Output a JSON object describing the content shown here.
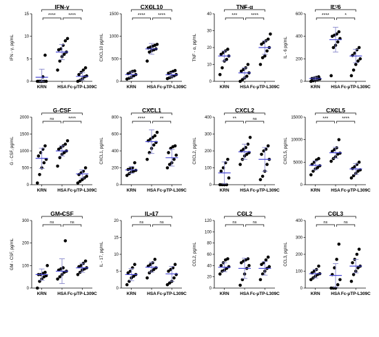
{
  "chart_data": [
    {
      "type": "scatter",
      "title": "IFN-γ",
      "ylabel": "IFN - γ, pg/mL",
      "ylim": [
        0,
        15
      ],
      "yticks": [
        "0",
        "5",
        "10",
        "15"
      ],
      "categories": [
        "KRN",
        "HSA",
        "Fc-μTP-L309C"
      ],
      "series": [
        {
          "values": [
            [
              0,
              0,
              0,
              0,
              0,
              0,
              0,
              1,
              5.8
            ],
            [
              2.5,
              4.5,
              5.5,
              6,
              6.5,
              7,
              7.2,
              8,
              9,
              9.5
            ],
            [
              0,
              0.2,
              0.5,
              1,
              1.2,
              1.5,
              2,
              2.5,
              3
            ]
          ]
        }
      ],
      "means": [
        0.9,
        6.5,
        1.1
      ],
      "errors": [
        1.8,
        1.7,
        0.8
      ],
      "comparisons": [
        {
          "pair": [
            0,
            2
          ],
          "label": "ns"
        },
        {
          "pair": [
            0,
            1
          ],
          "label": "****"
        },
        {
          "pair": [
            1,
            2
          ],
          "label": "****"
        }
      ]
    },
    {
      "type": "scatter",
      "title": "CXCL10",
      "ylabel": "CXCL10 pg/mL",
      "ylim": [
        0,
        1500
      ],
      "yticks": [
        "0",
        "500",
        "1000",
        "1500"
      ],
      "categories": [
        "KRN",
        "HSA",
        "Fc-μTP-L309C"
      ],
      "series": [
        {
          "values": [
            [
              50,
              70,
              90,
              120,
              150,
              170,
              200,
              220,
              230
            ],
            [
              450,
              650,
              680,
              700,
              720,
              740,
              760,
              780,
              800,
              820
            ],
            [
              60,
              80,
              100,
              120,
              150,
              180,
              200,
              220,
              240
            ]
          ]
        }
      ],
      "means": [
        150,
        720,
        145
      ],
      "errors": [
        60,
        120,
        50
      ],
      "comparisons": [
        {
          "pair": [
            0,
            2
          ],
          "label": "ns"
        },
        {
          "pair": [
            0,
            1
          ],
          "label": "****"
        },
        {
          "pair": [
            1,
            2
          ],
          "label": "****"
        }
      ]
    },
    {
      "type": "scatter",
      "title": "TNF-α",
      "ylabel": "TNF - α, pg/mL",
      "ylim": [
        0,
        40
      ],
      "yticks": [
        "0",
        "10",
        "20",
        "30",
        "40"
      ],
      "categories": [
        "KRN",
        "HSA",
        "Fc-μTP-L309C"
      ],
      "series": [
        {
          "values": [
            [
              4,
              8,
              12,
              13,
              15,
              16,
              17,
              18,
              19
            ],
            [
              0,
              1,
              2,
              3,
              5,
              6,
              7,
              8,
              10
            ],
            [
              10,
              14,
              15,
              18,
              20,
              22,
              23,
              24,
              25,
              28
            ]
          ]
        }
      ],
      "means": [
        15,
        5,
        20
      ],
      "errors": [
        3,
        3,
        4
      ],
      "comparisons": [
        {
          "pair": [
            0,
            2
          ],
          "label": "ns"
        },
        {
          "pair": [
            0,
            1
          ],
          "label": "***"
        },
        {
          "pair": [
            1,
            2
          ],
          "label": "****"
        }
      ]
    },
    {
      "type": "scatter",
      "title": "IL-6",
      "ylabel": "IL - 6 pg/mL",
      "ylim": [
        0,
        600
      ],
      "yticks": [
        "0",
        "200",
        "400",
        "600"
      ],
      "categories": [
        "KRN",
        "HSA",
        "Fc-μTP-L309C"
      ],
      "series": [
        {
          "values": [
            [
              0,
              5,
              10,
              15,
              20,
              25,
              30,
              35,
              40
            ],
            [
              50,
              300,
              320,
              350,
              380,
              400,
              410,
              420,
              440
            ],
            [
              50,
              100,
              150,
              180,
              200,
              230,
              250,
              280,
              300
            ]
          ]
        }
      ],
      "means": [
        25,
        370,
        225
      ],
      "errors": [
        12,
        110,
        60
      ],
      "comparisons": [
        {
          "pair": [
            0,
            2
          ],
          "label": "***"
        },
        {
          "pair": [
            0,
            1
          ],
          "label": "****"
        },
        {
          "pair": [
            1,
            2
          ],
          "label": "*"
        }
      ]
    },
    {
      "type": "scatter",
      "title": "G-CSF",
      "ylabel": "G - CSF, pg/mL",
      "ylim": [
        0,
        2000
      ],
      "yticks": [
        "0",
        "500",
        "1000",
        "1500",
        "2000"
      ],
      "categories": [
        "KRN",
        "HSA",
        "Fc-μTP-L309C"
      ],
      "series": [
        {
          "values": [
            [
              50,
              300,
              500,
              650,
              750,
              850,
              950,
              1050,
              1150
            ],
            [
              550,
              800,
              900,
              950,
              1000,
              1050,
              1100,
              1150,
              1200,
              1300
            ],
            [
              50,
              100,
              150,
              200,
              250,
              300,
              350,
              400,
              500
            ]
          ]
        }
      ],
      "means": [
        780,
        1000,
        320
      ],
      "errors": [
        300,
        150,
        120
      ],
      "comparisons": [
        {
          "pair": [
            0,
            2
          ],
          "label": "**"
        },
        {
          "pair": [
            0,
            1
          ],
          "label": "ns"
        },
        {
          "pair": [
            1,
            2
          ],
          "label": "****"
        }
      ]
    },
    {
      "type": "scatter",
      "title": "CXCL1",
      "ylabel": "CXCL1, pg/mL",
      "ylim": [
        0,
        800
      ],
      "yticks": [
        "0",
        "200",
        "400",
        "600",
        "800"
      ],
      "categories": [
        "KRN",
        "HSA",
        "Fc-μTP-L309C"
      ],
      "series": [
        {
          "values": [
            [
              110,
              130,
              150,
              160,
              170,
              180,
              190,
              200,
              260
            ],
            [
              300,
              380,
              430,
              470,
              500,
              520,
              540,
              560,
              580,
              620
            ],
            [
              200,
              240,
              260,
              300,
              350,
              380,
              430,
              450,
              460
            ]
          ]
        }
      ],
      "means": [
        175,
        510,
        320
      ],
      "errors": [
        40,
        140,
        100
      ],
      "comparisons": [
        {
          "pair": [
            0,
            2
          ],
          "label": "**"
        },
        {
          "pair": [
            0,
            1
          ],
          "label": "****"
        },
        {
          "pair": [
            1,
            2
          ],
          "label": "**"
        }
      ]
    },
    {
      "type": "scatter",
      "title": "CXCL2",
      "ylabel": "CXCL2, pg/mL",
      "ylim": [
        0,
        400
      ],
      "yticks": [
        "0",
        "100",
        "200",
        "300",
        "400"
      ],
      "categories": [
        "KRN",
        "HSA",
        "Fc-μTP-L309C"
      ],
      "series": [
        {
          "values": [
            [
              0,
              0,
              0,
              0,
              40,
              80,
              100,
              130,
              150
            ],
            [
              120,
              150,
              170,
              180,
              190,
              200,
              210,
              220,
              240,
              280
            ],
            [
              30,
              50,
              80,
              120,
              150,
              180,
              200,
              210,
              230
            ]
          ]
        }
      ],
      "means": [
        70,
        195,
        150
      ],
      "errors": [
        65,
        45,
        70
      ],
      "comparisons": [
        {
          "pair": [
            0,
            2
          ],
          "label": "*"
        },
        {
          "pair": [
            0,
            1
          ],
          "label": "**"
        },
        {
          "pair": [
            1,
            2
          ],
          "label": "ns"
        }
      ]
    },
    {
      "type": "scatter",
      "title": "CXCL5",
      "ylabel": "CXCL5, pg/mL",
      "ylim": [
        0,
        15000
      ],
      "yticks": [
        "0",
        "5000",
        "10000",
        "15000"
      ],
      "categories": [
        "KRN",
        "HSA",
        "Fc-μTP-L309C"
      ],
      "series": [
        {
          "values": [
            [
              2200,
              3000,
              3500,
              3800,
              4200,
              4500,
              5000,
              5500,
              5800
            ],
            [
              5200,
              5800,
              6200,
              6800,
              7000,
              7400,
              7800,
              8200,
              10000
            ],
            [
              1500,
              2000,
              2500,
              3000,
              3300,
              3600,
              4000,
              4500,
              5000
            ]
          ]
        }
      ],
      "means": [
        4300,
        7100,
        3500
      ],
      "errors": [
        1000,
        1200,
        1200
      ],
      "comparisons": [
        {
          "pair": [
            0,
            2
          ],
          "label": "ns"
        },
        {
          "pair": [
            0,
            1
          ],
          "label": "***"
        },
        {
          "pair": [
            1,
            2
          ],
          "label": "****"
        }
      ]
    },
    {
      "type": "scatter",
      "title": "GM-CSF",
      "ylabel": "GM - CSF, pg/mL",
      "ylim": [
        0,
        300
      ],
      "yticks": [
        "0",
        "100",
        "200",
        "300"
      ],
      "categories": [
        "KRN",
        "HSA",
        "Fc-μTP-L309C"
      ],
      "series": [
        {
          "values": [
            [
              0,
              30,
              40,
              50,
              55,
              60,
              60,
              65,
              70,
              100
            ],
            [
              40,
              50,
              60,
              70,
              75,
              80,
              85,
              90,
              210
            ],
            [
              60,
              70,
              80,
              85,
              90,
              95,
              100,
              110,
              120
            ]
          ]
        }
      ],
      "means": [
        60,
        75,
        90
      ],
      "errors": [
        25,
        55,
        20
      ],
      "comparisons": [
        {
          "pair": [
            0,
            2
          ],
          "label": "ns"
        },
        {
          "pair": [
            0,
            1
          ],
          "label": "ns"
        },
        {
          "pair": [
            1,
            2
          ],
          "label": "ns"
        }
      ]
    },
    {
      "type": "scatter",
      "title": "IL-17",
      "ylabel": "IL - 17, pg/mL",
      "ylim": [
        0,
        20
      ],
      "yticks": [
        "0",
        "5",
        "10",
        "15",
        "20"
      ],
      "categories": [
        "KRN",
        "HSA",
        "Fc-μTP-L309C"
      ],
      "series": [
        {
          "values": [
            [
              1,
              2,
              3,
              3.5,
              4,
              4.5,
              5,
              6,
              7
            ],
            [
              3,
              4.5,
              5,
              5.5,
              6,
              6.5,
              7,
              7.5,
              8.5
            ],
            [
              1,
              1.5,
              2,
              3,
              4,
              5,
              5.5,
              6,
              7
            ]
          ]
        }
      ],
      "means": [
        4,
        6.2,
        4.2
      ],
      "errors": [
        1.8,
        1.5,
        2.2
      ],
      "comparisons": [
        {
          "pair": [
            0,
            2
          ],
          "label": "ns"
        },
        {
          "pair": [
            0,
            1
          ],
          "label": "ns"
        },
        {
          "pair": [
            1,
            2
          ],
          "label": "ns"
        }
      ]
    },
    {
      "type": "scatter",
      "title": "CCL2",
      "ylabel": "CCL2, pg/mL",
      "ylim": [
        0,
        120
      ],
      "yticks": [
        "0",
        "20",
        "40",
        "60",
        "80",
        "100",
        "120"
      ],
      "categories": [
        "KRN",
        "HSA",
        "Fc-μTP-L309C"
      ],
      "series": [
        {
          "values": [
            [
              25,
              30,
              32,
              35,
              38,
              40,
              45,
              50,
              52
            ],
            [
              5,
              15,
              25,
              35,
              40,
              45,
              48,
              50,
              52
            ],
            [
              15,
              25,
              30,
              35,
              38,
              42,
              45,
              50,
              55
            ]
          ]
        }
      ],
      "means": [
        37,
        35,
        35
      ],
      "errors": [
        8,
        18,
        12
      ],
      "comparisons": [
        {
          "pair": [
            0,
            2
          ],
          "label": "ns"
        },
        {
          "pair": [
            0,
            1
          ],
          "label": "ns"
        },
        {
          "pair": [
            1,
            2
          ],
          "label": "ns"
        }
      ]
    },
    {
      "type": "scatter",
      "title": "CCL3",
      "ylabel": "CCL3, pg/mL",
      "ylim": [
        0,
        400
      ],
      "yticks": [
        "0",
        "100",
        "200",
        "300",
        "400"
      ],
      "categories": [
        "KRN",
        "HSA",
        "Fc-μTP-L309C"
      ],
      "series": [
        {
          "values": [
            [
              50,
              60,
              70,
              80,
              85,
              90,
              100,
              110,
              130
            ],
            [
              0,
              0,
              0,
              20,
              50,
              80,
              120,
              170,
              260
            ],
            [
              40,
              80,
              100,
              120,
              130,
              150,
              170,
              200,
              230
            ]
          ]
        }
      ],
      "means": [
        85,
        75,
        130
      ],
      "errors": [
        25,
        70,
        40
      ],
      "comparisons": [
        {
          "pair": [
            0,
            2
          ],
          "label": "ns"
        },
        {
          "pair": [
            0,
            1
          ],
          "label": "ns"
        },
        {
          "pair": [
            1,
            2
          ],
          "label": "ns"
        }
      ]
    }
  ]
}
